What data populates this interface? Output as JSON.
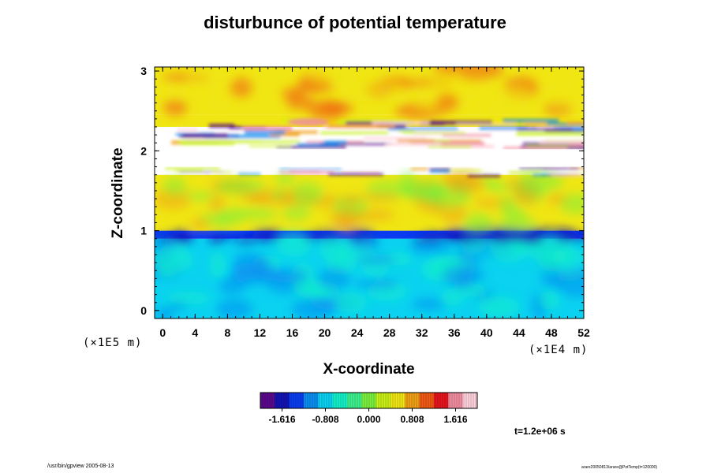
{
  "page": {
    "footer_left": "/usr/bin/gpview 2005-08-13",
    "footer_right": "arare20050813/arare@PotTemp(t=120000)",
    "time_label": "t=1.2e+06 s"
  },
  "chart_data": {
    "type": "heatmap",
    "title": "disturbunce of potential temperature",
    "xlabel": "X-coordinate",
    "ylabel": "Z-coordinate",
    "x_unit_label": "(×1E4 m)",
    "y_unit_label": "(×1E5 m)",
    "xlim": [
      -1,
      52
    ],
    "ylim": [
      -0.1,
      3.05
    ],
    "x_ticks": [
      0,
      4,
      8,
      12,
      16,
      20,
      24,
      28,
      32,
      36,
      40,
      44,
      48,
      52
    ],
    "y_ticks": [
      0,
      1,
      2,
      3
    ],
    "colorbar": {
      "min": -2.02,
      "max": 2.02,
      "ticks": [
        -1.616,
        -0.808,
        0.0,
        0.808,
        1.616
      ],
      "tick_labels": [
        "-1.616",
        "-0.808",
        "0.000",
        "0.808",
        "1.616"
      ],
      "colors": [
        "#5a0a8c",
        "#1414b4",
        "#0a3cf0",
        "#0a8cf0",
        "#0ad2f0",
        "#14f0c8",
        "#3cf08c",
        "#78f03c",
        "#c8f014",
        "#f0e614",
        "#f0a014",
        "#f05a14",
        "#e6141e",
        "#f08ca0",
        "#ffd2dc"
      ]
    },
    "field": {
      "description_rows_bottom_to_top": "values by height band",
      "bands": [
        {
          "z": [
            -0.1,
            0.9
          ],
          "value": -0.9
        },
        {
          "z": [
            0.9,
            1.0
          ],
          "value": -1.4
        },
        {
          "z": [
            1.0,
            1.7
          ],
          "value": 0.45
        },
        {
          "z": [
            1.7,
            2.3
          ],
          "value": "out-of-range"
        },
        {
          "z": [
            2.3,
            2.45
          ],
          "value": 0.6
        },
        {
          "z": [
            2.45,
            3.05
          ],
          "value": 0.55
        }
      ]
    }
  }
}
